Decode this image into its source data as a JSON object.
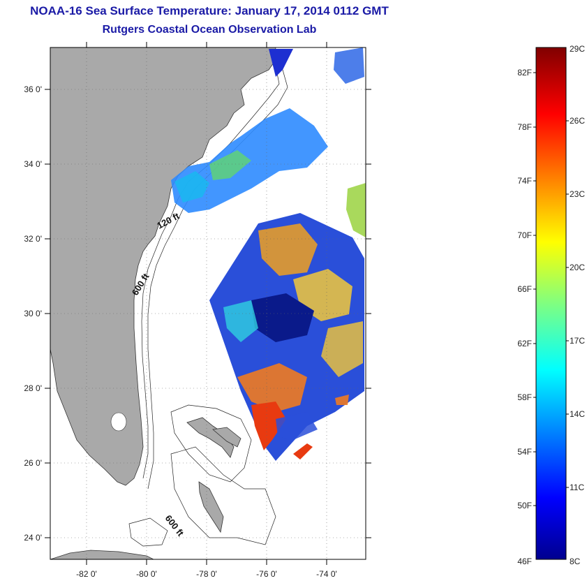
{
  "header": {
    "title": "NOAA-16 Sea Surface Temperature:  January 17, 2014 0112 GMT",
    "subtitle": "Rutgers Coastal Ocean Observation Lab"
  },
  "map": {
    "lon_ticks": [
      "-82 0'",
      "-80 0'",
      "-78 0'",
      "-76 0'",
      "-74 0'"
    ],
    "lat_ticks": [
      "36 0'",
      "34 0'",
      "32 0'",
      "30 0'",
      "28 0'",
      "26 0'",
      "24 0'"
    ],
    "lon_range": [
      -83,
      -72.5
    ],
    "lat_range": [
      23,
      37
    ],
    "annotations": [
      "120 ft",
      "600 ft",
      "600 ft"
    ],
    "colors": {
      "land": "#a9a9a9",
      "ocean": "#ffffff",
      "title": "#1a1aa6"
    }
  },
  "colorbar": {
    "fahrenheit_labels": [
      "82F",
      "78F",
      "74F",
      "70F",
      "66F",
      "62F",
      "58F",
      "54F",
      "50F",
      "46F"
    ],
    "celsius_labels": [
      "29C",
      "26C",
      "23C",
      "20C",
      "17C",
      "14C",
      "11C",
      "8C"
    ],
    "range_c": [
      8,
      29
    ]
  }
}
